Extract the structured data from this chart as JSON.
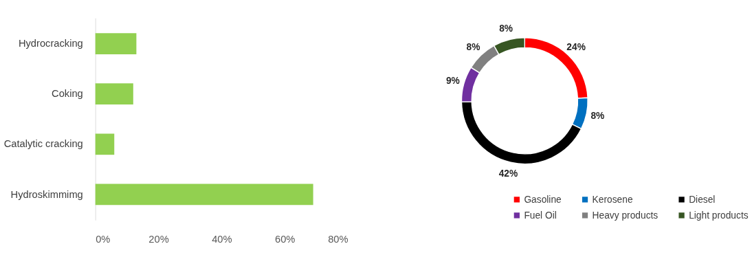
{
  "chart_data": [
    {
      "type": "bar",
      "orientation": "horizontal",
      "categories": [
        "Hydrocracking",
        "Coking",
        "Catalytic cracking",
        "Hydroskimmimg"
      ],
      "values": [
        13,
        12,
        6,
        69
      ],
      "color": "#92d050",
      "xlim": [
        0,
        80
      ],
      "xticks": [
        {
          "value": 0,
          "label": "0%"
        },
        {
          "value": 20,
          "label": "20%"
        },
        {
          "value": 40,
          "label": "40%"
        },
        {
          "value": 60,
          "label": "60%"
        },
        {
          "value": 80,
          "label": "80%"
        }
      ],
      "grid": false
    },
    {
      "type": "donut",
      "categories": [
        "Gasoline",
        "Kerosene",
        "Diesel",
        "Fuel Oil",
        "Heavy products",
        "Light products"
      ],
      "values": [
        24,
        8,
        42,
        9,
        8,
        8
      ],
      "colors": [
        "#ff0000",
        "#0070c0",
        "#000000",
        "#7030a0",
        "#808080",
        "#375623"
      ],
      "value_labels": [
        "24%",
        "8%",
        "42%",
        "9%",
        "8%",
        "8%"
      ],
      "legend": "bottom"
    }
  ]
}
